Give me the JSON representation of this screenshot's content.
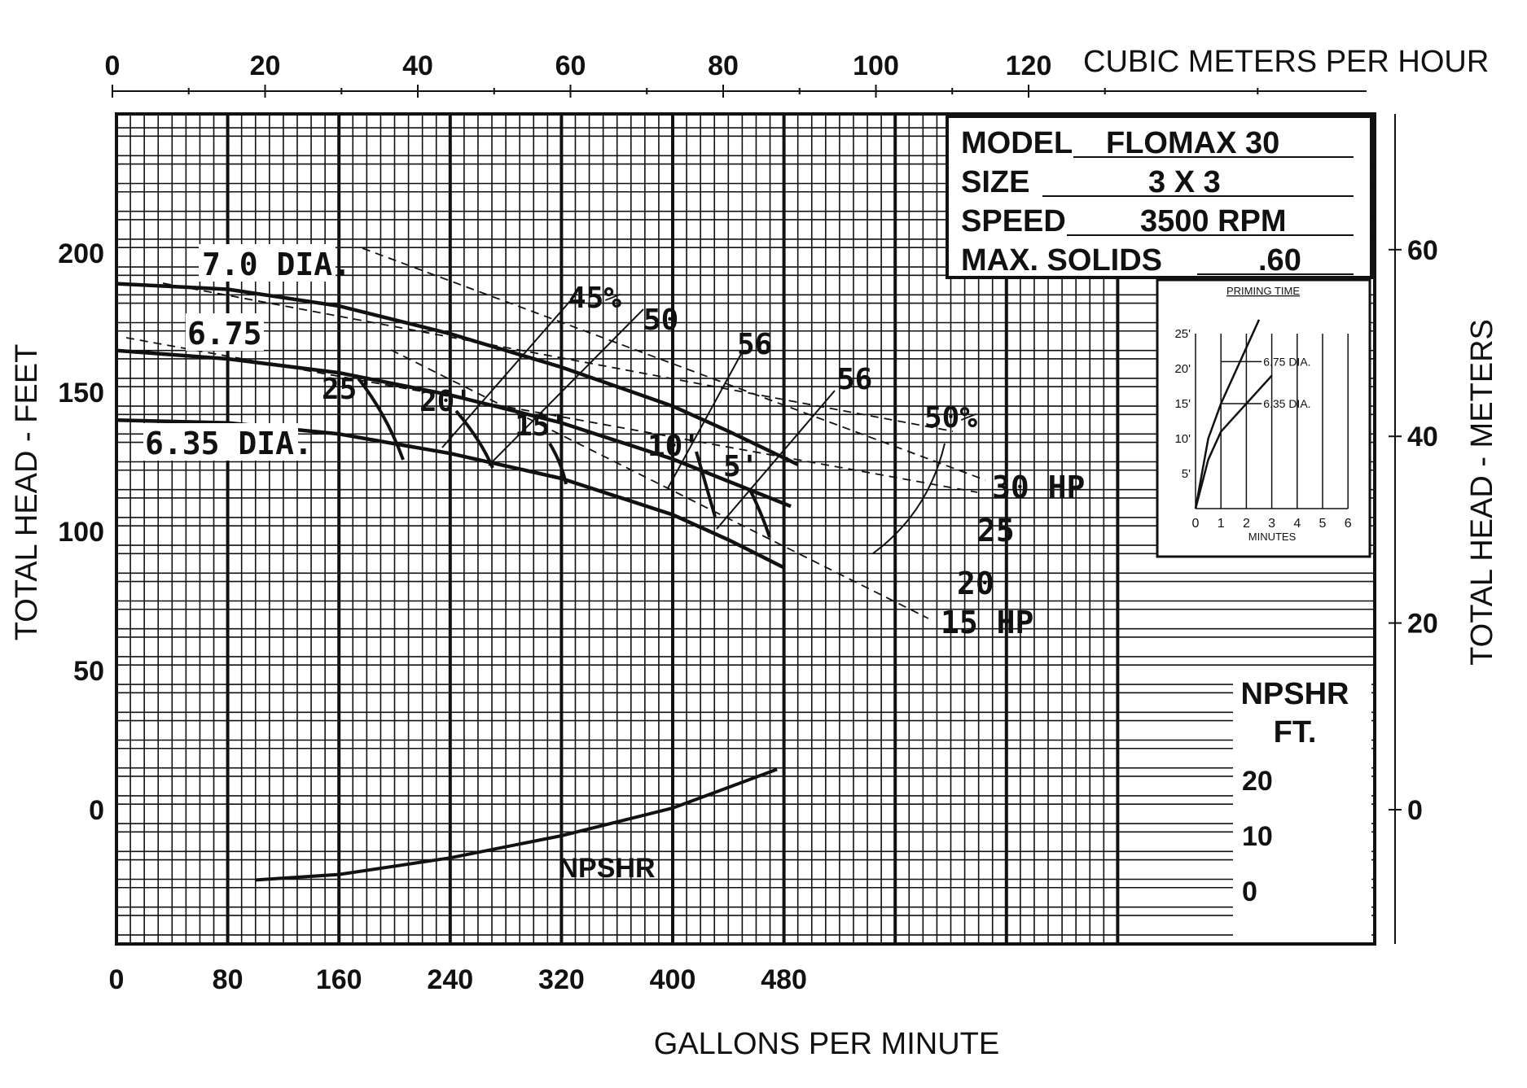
{
  "chart_data": {
    "type": "line",
    "title": "",
    "xlabel": "GALLONS PER MINUTE",
    "ylabel": "TOTAL HEAD - FEET",
    "xlabel_top": "CUBIC METERS PER HOUR",
    "ylabel_right": "TOTAL HEAD - METERS",
    "xlim": [
      0,
      720
    ],
    "ylim": [
      -50,
      250
    ],
    "x_ticks": [
      "0",
      "80",
      "160",
      "240",
      "320",
      "400",
      "480"
    ],
    "x_tick_values": [
      0,
      80,
      160,
      240,
      320,
      400,
      480
    ],
    "y_ticks": [
      "0",
      "50",
      "100",
      "150",
      "200"
    ],
    "y_tick_values": [
      0,
      50,
      100,
      150,
      200
    ],
    "top_ticks": [
      "0",
      "20",
      "40",
      "60",
      "80",
      "100",
      "120"
    ],
    "top_tick_values": [
      0,
      20,
      40,
      60,
      80,
      100,
      120
    ],
    "right_ticks": [
      "0",
      "20",
      "40",
      "60"
    ],
    "right_tick_values": [
      0,
      20,
      40,
      60
    ],
    "npshr_ticks": [
      "20",
      "10",
      "0"
    ],
    "npshr_tick_values": [
      20,
      10,
      0
    ],
    "grid": true,
    "info": {
      "model_label": "MODEL",
      "model_value": "FLOMAX 30",
      "size_label": "SIZE",
      "size_value": "3 X 3",
      "speed_label": "SPEED",
      "speed_value": "3500 RPM",
      "solids_label": "MAX. SOLIDS",
      "solids_value": ".60"
    },
    "npshr_label_1": "NPSHR",
    "npshr_label_2": "FT.",
    "npshr_curve_label": "NPSHR",
    "series": [
      {
        "name": "7.0 DIA.",
        "x": [
          0,
          80,
          160,
          240,
          320,
          400,
          440,
          490
        ],
        "y": [
          189,
          187,
          181,
          171,
          159,
          145,
          136,
          124
        ]
      },
      {
        "name": "6.75",
        "x": [
          0,
          80,
          160,
          240,
          320,
          400,
          440,
          485
        ],
        "y": [
          165,
          162,
          157,
          149,
          139,
          126,
          118,
          109
        ]
      },
      {
        "name": "6.35 DIA.",
        "x": [
          0,
          80,
          160,
          240,
          320,
          400,
          440,
          480
        ],
        "y": [
          140,
          139,
          135,
          128,
          119,
          106,
          97,
          87
        ]
      }
    ],
    "npshr_curve": {
      "x": [
        100,
        160,
        240,
        320,
        400,
        475
      ],
      "y": [
        2,
        3,
        6,
        10,
        15,
        22
      ]
    },
    "hp_labels": [
      "30 HP",
      "25",
      "20",
      "15 HP"
    ],
    "efficiency_labels": [
      "45%",
      "50",
      "56",
      "56",
      "50%"
    ],
    "npsh_marks": [
      "25'",
      "20'",
      "15'",
      "10'",
      "5'"
    ],
    "priming": {
      "title": "PRIMING TIME",
      "xlabel": "MINUTES",
      "x_ticks": [
        "0",
        "1",
        "2",
        "3",
        "4",
        "5",
        "6"
      ],
      "y_ticks": [
        "25'",
        "20'",
        "15'",
        "10'",
        "5'"
      ],
      "series": [
        {
          "name": "6.75 DIA.",
          "x": [
            0,
            0.5,
            1,
            1.5,
            2,
            2.5
          ],
          "y": [
            0,
            10,
            15,
            19,
            23,
            27
          ]
        },
        {
          "name": "6.35 DIA.",
          "x": [
            0,
            0.5,
            1,
            1.5,
            2,
            2.5,
            3
          ],
          "y": [
            0,
            7,
            11,
            13,
            15,
            17,
            19
          ]
        }
      ]
    }
  }
}
